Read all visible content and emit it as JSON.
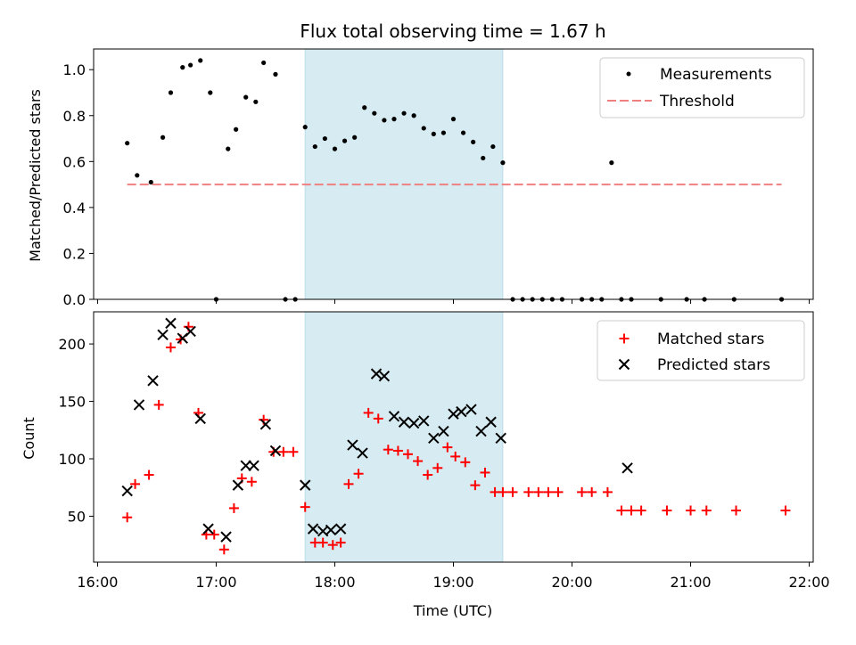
{
  "chart_data": [
    {
      "type": "scatter",
      "title": "Flux total observing time = 1.67 h",
      "xlabel": "",
      "ylabel": "Matched/Predicted stars",
      "x_unit": "time (UTC)",
      "xlim": [
        "15:58",
        "22:02"
      ],
      "ylim": [
        0,
        1.09
      ],
      "yticks": [
        "0.0",
        "0.2",
        "0.4",
        "0.6",
        "0.8",
        "1.0"
      ],
      "xtick_labels_shown": false,
      "shaded_interval": [
        "17:45",
        "19:25"
      ],
      "shade_color": "#add8e6",
      "legend": {
        "placement": "upper right",
        "entries": [
          "Measurements",
          "Threshold"
        ]
      },
      "series": [
        {
          "name": "Measurements",
          "marker": "dot",
          "color": "#000000",
          "x": [
            "16:15",
            "16:20",
            "16:27",
            "16:33",
            "16:37",
            "16:43",
            "16:47",
            "16:52",
            "16:57",
            "17:00",
            "17:06",
            "17:10",
            "17:15",
            "17:20",
            "17:24",
            "17:30",
            "17:35",
            "17:40",
            "17:45",
            "17:50",
            "17:55",
            "18:00",
            "18:05",
            "18:10",
            "18:15",
            "18:20",
            "18:25",
            "18:30",
            "18:35",
            "18:40",
            "18:45",
            "18:50",
            "18:55",
            "19:00",
            "19:05",
            "19:10",
            "19:15",
            "19:20",
            "19:25",
            "19:30",
            "19:35",
            "19:40",
            "19:45",
            "19:50",
            "19:55",
            "20:05",
            "20:10",
            "20:15",
            "20:20",
            "20:25",
            "20:30",
            "20:45",
            "20:58",
            "21:07",
            "21:22",
            "21:46"
          ],
          "y": [
            0.68,
            0.54,
            0.51,
            0.705,
            0.9,
            1.01,
            1.02,
            1.04,
            0.9,
            0.0,
            0.655,
            0.74,
            0.88,
            0.86,
            1.03,
            0.98,
            0.0,
            0.0,
            0.75,
            0.665,
            0.7,
            0.655,
            0.69,
            0.705,
            0.835,
            0.81,
            0.78,
            0.785,
            0.81,
            0.8,
            0.745,
            0.72,
            0.725,
            0.785,
            0.725,
            0.685,
            0.615,
            0.665,
            0.595,
            0.0,
            0.0,
            0.0,
            0.0,
            0.0,
            0.0,
            0.0,
            0.0,
            0.0,
            0.595,
            0.0,
            0.0,
            0.0,
            0.0,
            0.0,
            0.0,
            0.0
          ]
        },
        {
          "name": "Threshold",
          "style": "dashed",
          "color": "#f08080",
          "x": [
            "16:15",
            "21:46"
          ],
          "y": [
            0.5,
            0.5
          ]
        }
      ]
    },
    {
      "type": "scatter",
      "title": "",
      "xlabel": "Time (UTC)",
      "ylabel": "Count",
      "xlim": [
        "15:58",
        "22:02"
      ],
      "ylim": [
        10,
        228
      ],
      "yticks": [
        "50",
        "100",
        "150",
        "200"
      ],
      "xticks": [
        "16:00",
        "17:00",
        "18:00",
        "19:00",
        "20:00",
        "21:00",
        "22:00"
      ],
      "shaded_interval": [
        "17:45",
        "19:25"
      ],
      "shade_color": "#add8e6",
      "legend": {
        "placement": "upper right",
        "entries": [
          "Matched stars",
          "Predicted stars"
        ]
      },
      "series": [
        {
          "name": "Matched stars",
          "marker": "plus",
          "color": "#ff0000",
          "x": [
            "16:15",
            "16:19",
            "16:26",
            "16:31",
            "16:37",
            "16:42",
            "16:46",
            "16:51",
            "16:55",
            "16:59",
            "17:04",
            "17:09",
            "17:13",
            "17:18",
            "17:24",
            "17:29",
            "17:34",
            "17:39",
            "17:45",
            "17:50",
            "17:54",
            "17:59",
            "18:03",
            "18:07",
            "18:12",
            "18:17",
            "18:22",
            "18:27",
            "18:32",
            "18:37",
            "18:42",
            "18:47",
            "18:52",
            "18:57",
            "19:01",
            "19:06",
            "19:11",
            "19:16",
            "19:21",
            "19:25",
            "19:30",
            "19:38",
            "19:43",
            "19:48",
            "19:53",
            "20:05",
            "20:10",
            "20:18",
            "20:25",
            "20:30",
            "20:35",
            "20:48",
            "21:00",
            "21:08",
            "21:23",
            "21:48"
          ],
          "y": [
            49,
            78,
            86,
            147,
            197,
            204,
            215,
            140,
            34,
            34,
            21,
            57,
            83,
            80,
            134,
            106,
            106,
            106,
            58,
            27,
            27,
            25,
            27,
            78,
            87,
            140,
            135,
            108,
            107,
            104,
            98,
            86,
            92,
            110,
            102,
            97,
            77,
            88,
            71,
            71,
            71,
            71,
            71,
            71,
            71,
            71,
            71,
            71,
            55,
            55,
            55,
            55,
            55,
            55,
            55,
            55
          ]
        },
        {
          "name": "Predicted stars",
          "marker": "x",
          "color": "#000000",
          "x": [
            "16:15",
            "16:21",
            "16:28",
            "16:33",
            "16:37",
            "16:43",
            "16:47",
            "16:52",
            "16:56",
            "17:05",
            "17:11",
            "17:15",
            "17:19",
            "17:25",
            "17:30",
            "17:45",
            "17:49",
            "17:54",
            "17:58",
            "18:03",
            "18:09",
            "18:14",
            "18:21",
            "18:25",
            "18:30",
            "18:35",
            "18:40",
            "18:45",
            "18:50",
            "18:55",
            "19:00",
            "19:04",
            "19:09",
            "19:14",
            "19:19",
            "19:24",
            "20:28"
          ],
          "y": [
            72,
            147,
            168,
            208,
            218,
            205,
            211,
            135,
            39,
            32,
            77,
            94,
            94,
            130,
            107,
            77,
            39,
            37,
            38,
            39,
            112,
            105,
            174,
            172,
            137,
            132,
            131,
            133,
            118,
            124,
            139,
            141,
            143,
            124,
            132,
            118,
            92
          ]
        }
      ]
    }
  ]
}
